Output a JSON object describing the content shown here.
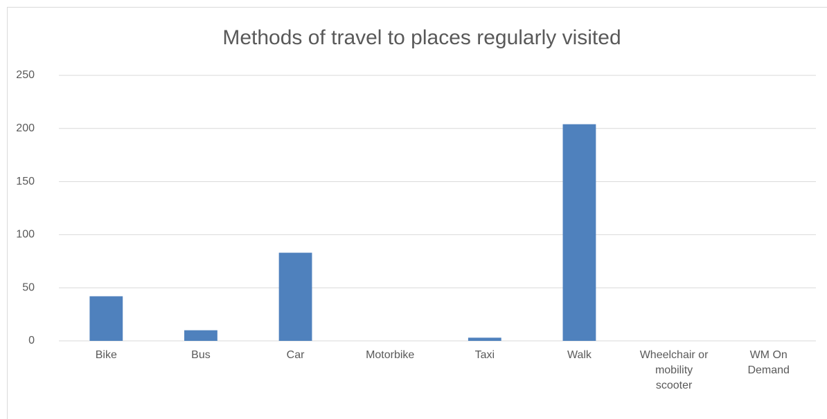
{
  "chart_data": {
    "type": "bar",
    "title": "Methods of travel to places regularly visited",
    "categories": [
      "Bike",
      "Bus",
      "Car",
      "Motorbike",
      "Taxi",
      "Walk",
      "Wheelchair or mobility scooter",
      "WM On Demand"
    ],
    "values": [
      42,
      10,
      83,
      0,
      3,
      204,
      0,
      0
    ],
    "color": "#4f81bd",
    "ylim": [
      0,
      250
    ],
    "yticks": [
      0,
      50,
      100,
      150,
      200,
      250
    ],
    "grid": true
  }
}
